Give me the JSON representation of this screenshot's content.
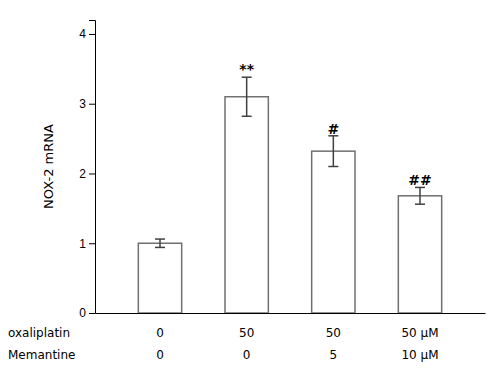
{
  "chart_data": {
    "type": "bar",
    "ylabel": "NOX-2 mRNA",
    "xlabel": [
      "oxaliplatin",
      "Memantine"
    ],
    "categories": [
      [
        "0",
        "0"
      ],
      [
        "50",
        "0"
      ],
      [
        "50",
        "5"
      ],
      [
        "50 μM",
        "10 μM"
      ]
    ],
    "values": [
      1.0,
      3.1,
      2.32,
      1.68
    ],
    "errors": [
      0.06,
      0.28,
      0.22,
      0.12
    ],
    "color": "#ffffff",
    "ylim": [
      0,
      4.2
    ],
    "yticks": [
      0,
      1,
      2,
      3,
      4
    ],
    "grid": false,
    "annotations": [
      {
        "text": "**",
        "x": 1,
        "y": 3.42
      },
      {
        "text": "#",
        "x": 2,
        "y": 2.57
      },
      {
        "text": "##",
        "x": 3,
        "y": 1.83
      }
    ]
  }
}
